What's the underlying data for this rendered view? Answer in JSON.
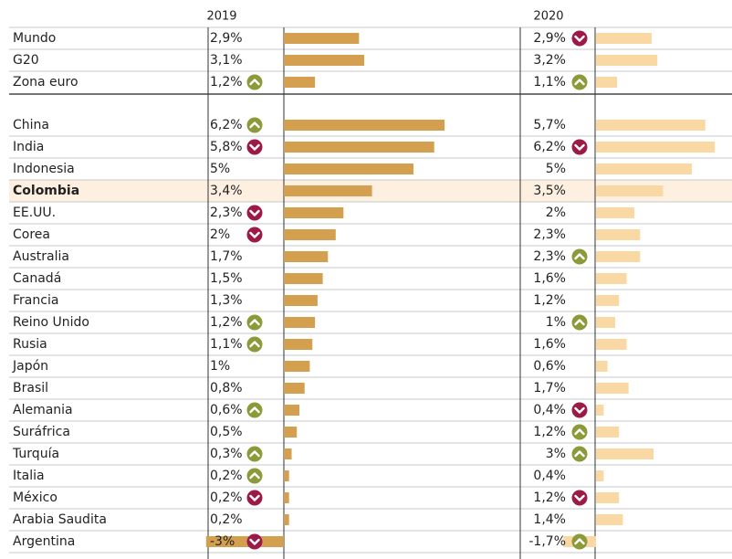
{
  "chart_data": {
    "type": "bar",
    "categories": [
      "Mundo",
      "G20",
      "Zona euro",
      "China",
      "India",
      "Indonesia",
      "Colombia",
      "EE.UU.",
      "Corea",
      "Australia",
      "Canadá",
      "Francia",
      "Reino Unido",
      "Rusia",
      "Japón",
      "Brasil",
      "Alemania",
      "Suráfrica",
      "Turquía",
      "Italia",
      "México",
      "Arabia Saudita",
      "Argentina"
    ],
    "highlight": "Colombia",
    "series": [
      {
        "name": "2019",
        "color": "#d4a04f",
        "values": [
          2.9,
          3.1,
          1.2,
          6.2,
          5.8,
          5,
          3.4,
          2.3,
          2,
          1.7,
          1.5,
          1.3,
          1.2,
          1.1,
          1,
          0.8,
          0.6,
          0.5,
          0.3,
          0.2,
          0.2,
          0.2,
          -3
        ],
        "value_labels": [
          "2,9%",
          "3,1%",
          "1,2%",
          "6,2%",
          "5,8%",
          "5%",
          "3,4%",
          "2,3%",
          "2%",
          "1,7%",
          "1,5%",
          "1,3%",
          "1,2%",
          "1,1%",
          "1%",
          "0,8%",
          "0,6%",
          "0,5%",
          "0,3%",
          "0,2%",
          "0,2%",
          "0,2%",
          "-3%"
        ],
        "arrows": [
          null,
          null,
          "up",
          "up",
          "down",
          null,
          null,
          "down",
          "down",
          null,
          null,
          null,
          "up",
          "up",
          null,
          null,
          "up",
          null,
          "up",
          "up",
          "down",
          null,
          "down"
        ]
      },
      {
        "name": "2020",
        "color": "#f9d8a3",
        "values": [
          2.9,
          3.2,
          1.1,
          5.7,
          6.2,
          5,
          3.5,
          2,
          2.3,
          2.3,
          1.6,
          1.2,
          1,
          1.6,
          0.6,
          1.7,
          0.4,
          1.2,
          3,
          0.4,
          1.2,
          1.4,
          -1.7
        ],
        "value_labels": [
          "2,9%",
          "3,2%",
          "1,1%",
          "5,7%",
          "6,2%",
          "5%",
          "3,5%",
          "2%",
          "2,3%",
          "2,3%",
          "1,6%",
          "1,2%",
          "1%",
          "1,6%",
          "0,6%",
          "1,7%",
          "0,4%",
          "1,2%",
          "3%",
          "0,4%",
          "1,2%",
          "1,4%",
          "-1,7%"
        ],
        "arrows": [
          "down",
          null,
          "up",
          null,
          "down",
          null,
          null,
          null,
          null,
          "up",
          null,
          null,
          "up",
          null,
          null,
          null,
          "down",
          "up",
          "up",
          null,
          "down",
          null,
          "up"
        ]
      }
    ]
  }
}
